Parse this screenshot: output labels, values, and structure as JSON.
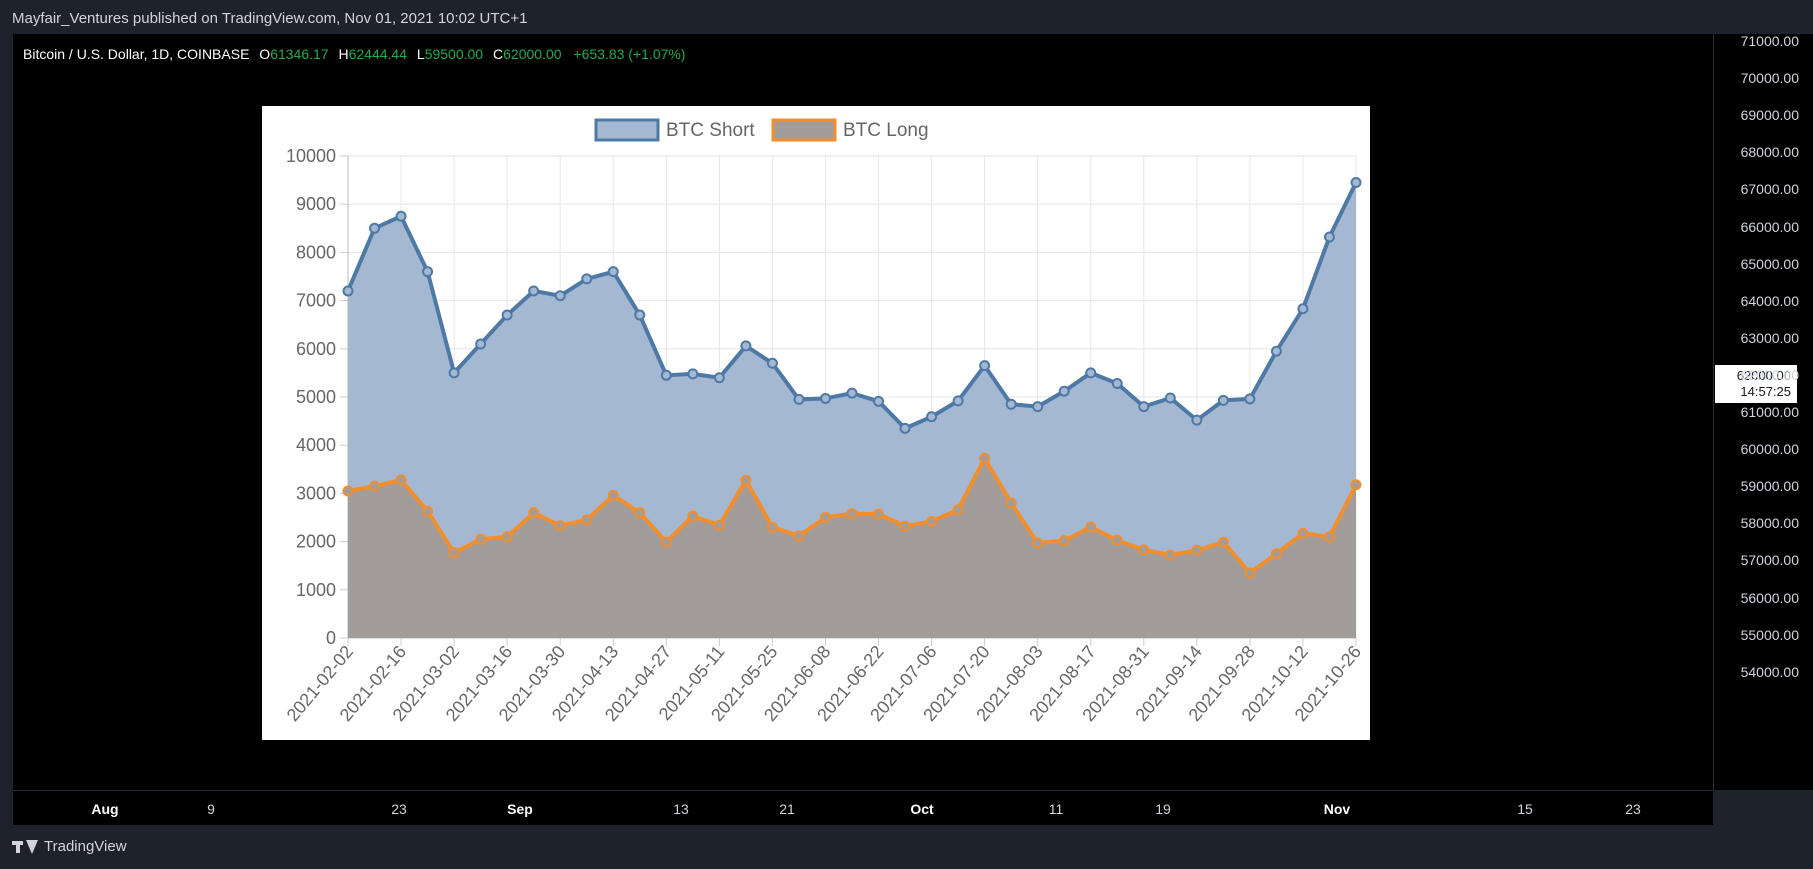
{
  "header": {
    "publish_line": "Mayfair_Ventures published on TradingView.com, Nov 01, 2021 10:02 UTC+1"
  },
  "symbol_legend": {
    "symbol": "Bitcoin / U.S. Dollar, 1D, COINBASE",
    "open_key": "O",
    "open": "61346.17",
    "high_key": "H",
    "high": "62444.44",
    "low_key": "L",
    "low": "59500.00",
    "close_key": "C",
    "close": "62000.00",
    "change": "+653.83 (+1.07%)",
    "color_up": "#22ab4d"
  },
  "price_axis": {
    "ticks": [
      "71000.00",
      "70000.00",
      "69000.00",
      "68000.00",
      "67000.00",
      "66000.00",
      "65000.00",
      "64000.00",
      "63000.00",
      "62000.00",
      "61000.00",
      "60000.00",
      "59000.00",
      "58000.00",
      "57000.00",
      "56000.00",
      "55000.00",
      "54000.00"
    ],
    "current_price": "62000.00",
    "countdown": "14:57:25"
  },
  "time_axis": {
    "ticks": [
      {
        "label": "Aug",
        "major": true
      },
      {
        "label": "9",
        "major": false
      },
      {
        "label": "23",
        "major": false
      },
      {
        "label": "Sep",
        "major": true
      },
      {
        "label": "13",
        "major": false
      },
      {
        "label": "21",
        "major": false
      },
      {
        "label": "Oct",
        "major": true
      },
      {
        "label": "11",
        "major": false
      },
      {
        "label": "19",
        "major": false
      },
      {
        "label": "Nov",
        "major": true
      },
      {
        "label": "15",
        "major": false
      },
      {
        "label": "23",
        "major": false
      }
    ]
  },
  "footer": {
    "brand": "TradingView"
  },
  "chart_data": {
    "type": "area",
    "x": [
      "2021-02-02",
      "2021-02-09",
      "2021-02-16",
      "2021-02-23",
      "2021-03-02",
      "2021-03-09",
      "2021-03-16",
      "2021-03-23",
      "2021-03-30",
      "2021-04-06",
      "2021-04-13",
      "2021-04-20",
      "2021-04-27",
      "2021-05-04",
      "2021-05-11",
      "2021-05-18",
      "2021-05-25",
      "2021-06-01",
      "2021-06-08",
      "2021-06-15",
      "2021-06-22",
      "2021-06-29",
      "2021-07-06",
      "2021-07-13",
      "2021-07-20",
      "2021-07-27",
      "2021-08-03",
      "2021-08-10",
      "2021-08-17",
      "2021-08-24",
      "2021-08-31",
      "2021-09-07",
      "2021-09-14",
      "2021-09-21",
      "2021-09-28",
      "2021-10-05",
      "2021-10-12",
      "2021-10-19",
      "2021-10-26"
    ],
    "xtick_labels": [
      "2021-02-02",
      "2021-02-16",
      "2021-03-02",
      "2021-03-16",
      "2021-03-30",
      "2021-04-13",
      "2021-04-27",
      "2021-05-11",
      "2021-05-25",
      "2021-06-08",
      "2021-06-22",
      "2021-07-06",
      "2021-07-20",
      "2021-08-03",
      "2021-08-17",
      "2021-08-31",
      "2021-09-14",
      "2021-09-28",
      "2021-10-12",
      "2021-10-26"
    ],
    "series": [
      {
        "name": "BTC Short",
        "color": "#4e79a7",
        "fill": "#a5b8d1",
        "values": [
          7200,
          8500,
          8750,
          7600,
          5500,
          6100,
          6700,
          7200,
          7100,
          7450,
          7600,
          6700,
          5450,
          5480,
          5400,
          6060,
          5700,
          4950,
          4970,
          5080,
          4910,
          4350,
          4590,
          4920,
          5650,
          4850,
          4800,
          5120,
          5500,
          5280,
          4800,
          4980,
          4520,
          4930,
          4960,
          5950,
          6830,
          8320,
          9450
        ]
      },
      {
        "name": "BTC Long",
        "color": "#f28e2b",
        "fill": "#a29d9a",
        "values": [
          3050,
          3150,
          3280,
          2630,
          1770,
          2050,
          2100,
          2600,
          2330,
          2450,
          2960,
          2600,
          1990,
          2530,
          2340,
          3270,
          2300,
          2120,
          2500,
          2580,
          2570,
          2320,
          2420,
          2660,
          3730,
          2800,
          1970,
          2020,
          2300,
          2030,
          1830,
          1720,
          1820,
          1990,
          1350,
          1750,
          2170,
          2100,
          3180
        ]
      }
    ],
    "ylim": [
      0,
      10000
    ],
    "yticks": [
      0,
      1000,
      2000,
      3000,
      4000,
      5000,
      6000,
      7000,
      8000,
      9000,
      10000
    ],
    "grid": true,
    "legend_position": "top-center"
  }
}
